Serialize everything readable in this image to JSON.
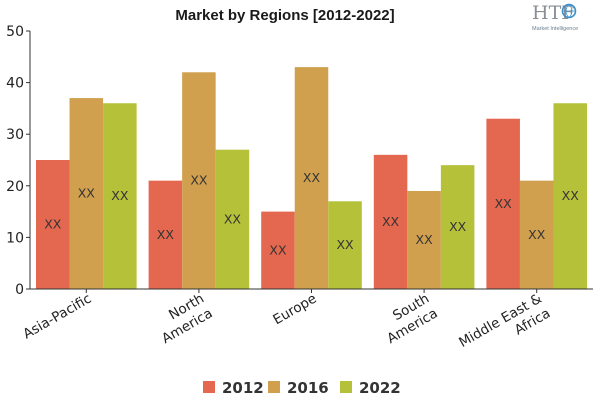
{
  "chart_data": {
    "type": "bar",
    "title": "Market by Regions [2012-2022]",
    "categories": [
      [
        "Asia-Pacific"
      ],
      [
        "North",
        "America"
      ],
      [
        "Europe"
      ],
      [
        "South",
        "America"
      ],
      [
        "Middle East &",
        "Africa"
      ]
    ],
    "series": [
      {
        "name": "2012",
        "color": "#e4674f",
        "values": [
          25,
          21,
          15,
          26,
          33
        ],
        "labels": [
          "XX",
          "XX",
          "XX",
          "XX",
          "XX"
        ]
      },
      {
        "name": "2016",
        "color": "#d1a04f",
        "values": [
          37,
          42,
          43,
          19,
          21
        ],
        "labels": [
          "XX",
          "XX",
          "XX",
          "XX",
          "XX"
        ]
      },
      {
        "name": "2022",
        "color": "#b4c139",
        "values": [
          36,
          27,
          17,
          24,
          36
        ],
        "labels": [
          "XX",
          "XX",
          "XX",
          "XX",
          "XX"
        ]
      }
    ],
    "ylim": [
      0,
      50
    ],
    "yticks": [
      0,
      10,
      20,
      30,
      40,
      50
    ],
    "xlabel": "",
    "ylabel": "",
    "grid": false,
    "legend_position": "bottom"
  },
  "logo": {
    "brand": "HTF",
    "tagline": "Market Intelligence"
  }
}
